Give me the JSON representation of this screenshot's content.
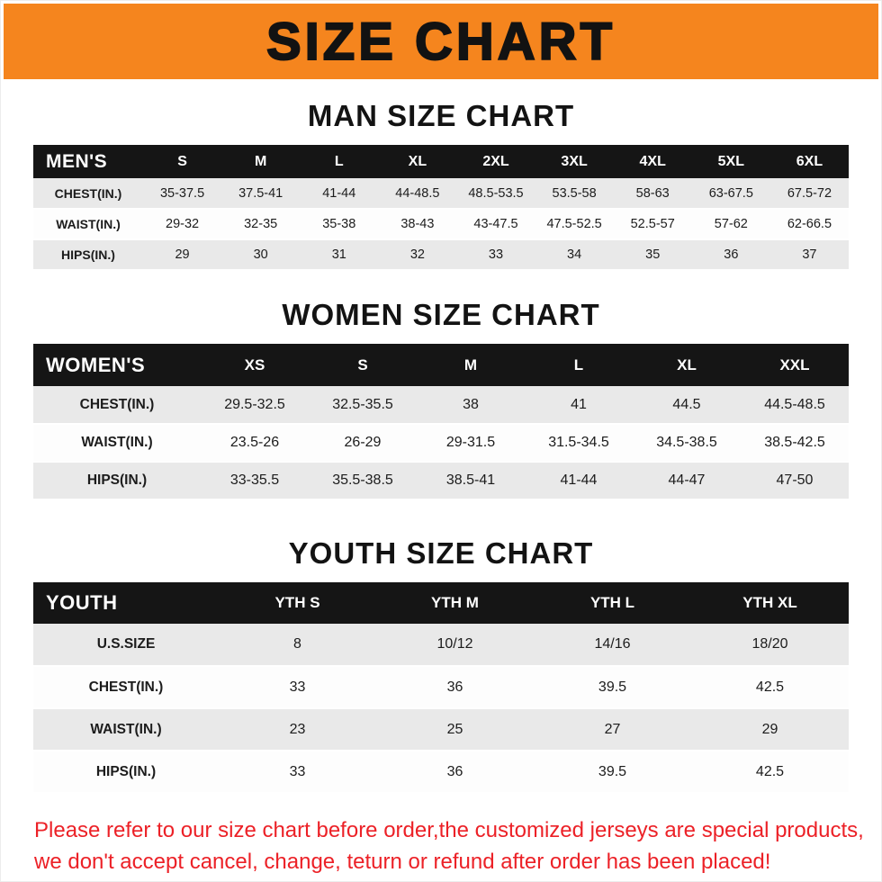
{
  "banner": {
    "title": "SIZE CHART"
  },
  "colors": {
    "banner_bg": "#f5851e",
    "table_header_bg": "#151515",
    "table_header_text": "#ffffff",
    "row_stripe": "#e9e9e9",
    "disclaimer_red": "#ec2127"
  },
  "man_section": {
    "heading": "MAN SIZE CHART",
    "table": {
      "header": [
        "MEN'S",
        "S",
        "M",
        "L",
        "XL",
        "2XL",
        "3XL",
        "4XL",
        "5XL",
        "6XL"
      ],
      "rows": [
        {
          "label": "CHEST(IN.)",
          "values": [
            "35-37.5",
            "37.5-41",
            "41-44",
            "44-48.5",
            "48.5-53.5",
            "53.5-58",
            "58-63",
            "63-67.5",
            "67.5-72"
          ]
        },
        {
          "label": "WAIST(IN.)",
          "values": [
            "29-32",
            "32-35",
            "35-38",
            "38-43",
            "43-47.5",
            "47.5-52.5",
            "52.5-57",
            "57-62",
            "62-66.5"
          ]
        },
        {
          "label": "HIPS(IN.)",
          "values": [
            "29",
            "30",
            "31",
            "32",
            "33",
            "34",
            "35",
            "36",
            "37"
          ]
        }
      ]
    }
  },
  "women_section": {
    "heading": "WOMEN SIZE CHART",
    "table": {
      "header": [
        "WOMEN'S",
        "XS",
        "S",
        "M",
        "L",
        "XL",
        "XXL"
      ],
      "rows": [
        {
          "label": "CHEST(IN.)",
          "values": [
            "29.5-32.5",
            "32.5-35.5",
            "38",
            "41",
            "44.5",
            "44.5-48.5"
          ]
        },
        {
          "label": "WAIST(IN.)",
          "values": [
            "23.5-26",
            "26-29",
            "29-31.5",
            "31.5-34.5",
            "34.5-38.5",
            "38.5-42.5"
          ]
        },
        {
          "label": "HIPS(IN.)",
          "values": [
            "33-35.5",
            "35.5-38.5",
            "38.5-41",
            "41-44",
            "44-47",
            "47-50"
          ]
        }
      ]
    }
  },
  "youth_section": {
    "heading": "YOUTH SIZE CHART",
    "table": {
      "header": [
        "YOUTH",
        "YTH S",
        "YTH M",
        "YTH L",
        "YTH XL"
      ],
      "rows": [
        {
          "label": "U.S.SIZE",
          "values": [
            "8",
            "10/12",
            "14/16",
            "18/20"
          ]
        },
        {
          "label": "CHEST(IN.)",
          "values": [
            "33",
            "36",
            "39.5",
            "42.5"
          ]
        },
        {
          "label": "WAIST(IN.)",
          "values": [
            "23",
            "25",
            "27",
            "29"
          ]
        },
        {
          "label": "HIPS(IN.)",
          "values": [
            "33",
            "36",
            "39.5",
            "42.5"
          ]
        }
      ]
    }
  },
  "footer": {
    "line1": "Please refer to our size chart before order,the customized jerseys are special products,",
    "line2": "we don't accept cancel, change, teturn or refund after order has been placed!"
  }
}
